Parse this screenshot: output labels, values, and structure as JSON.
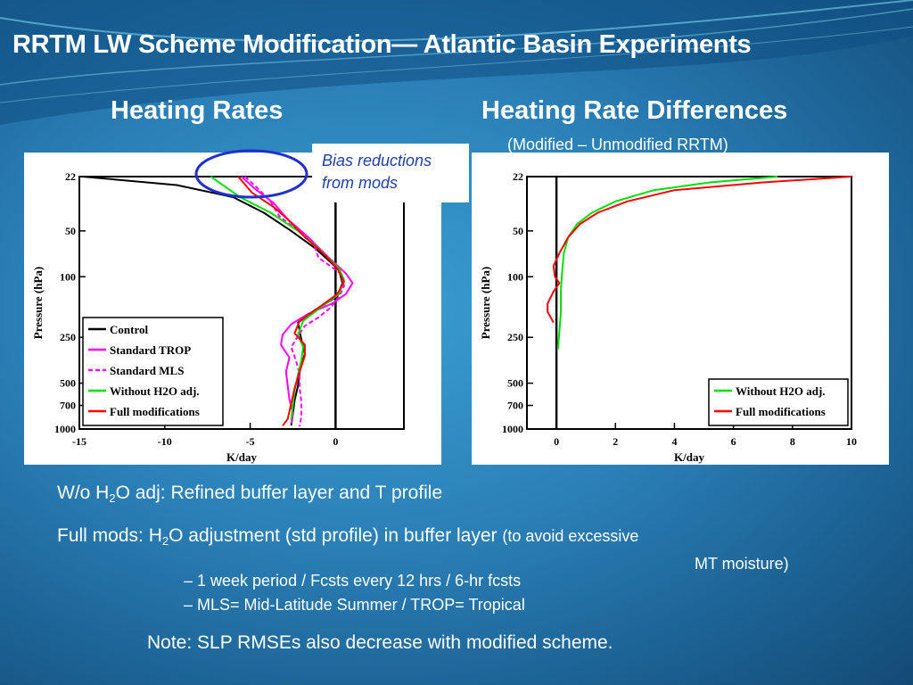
{
  "slide": {
    "title": "RRTM LW Scheme Modification— Atlantic Basin Experiments",
    "left_heading": "Heating Rates",
    "right_heading": "Heating Rate Differences",
    "right_subheading": "(Modified – Unmodified RRTM)",
    "callout_line1": "Bias reductions",
    "callout_line2": "from mods",
    "text1_pre": "W/o H",
    "text1_sub": "2",
    "text1_post": "O adj: Refined buffer layer and T profile",
    "text2_pre": "Full mods: H",
    "text2_sub": "2",
    "text2_post": "O adjustment (std profile) in buffer layer ",
    "text2_small": "(to avoid excessive",
    "text2_cont": "MT moisture)",
    "bullet1": "– 1 week period / Fcsts every 12 hrs / 6-hr fcsts",
    "bullet2": "– MLS= Mid-Latitude Summer / TROP= Tropical",
    "note": "Note: SLP RMSEs also decrease with modified scheme."
  },
  "chart_data": [
    {
      "type": "line",
      "xlabel": "K/day",
      "ylabel": "Pressure (hPa)",
      "xlim": [
        -15,
        4
      ],
      "ylim": [
        1000,
        22
      ],
      "yscale": "log",
      "xticks": [
        -15,
        -10,
        -5,
        0
      ],
      "yticks": [
        22,
        50,
        100,
        250,
        500,
        700,
        1000
      ],
      "ref_x": 0,
      "legend_position": "bottom-left",
      "series": [
        {
          "name": "Control",
          "color": "#000000",
          "points": [
            [
              -14.8,
              22
            ],
            [
              -9.3,
              25
            ],
            [
              -6.0,
              30
            ],
            [
              -4.2,
              38
            ],
            [
              -2.6,
              50
            ],
            [
              -1.2,
              65
            ],
            [
              0.2,
              90
            ],
            [
              0.4,
              110
            ],
            [
              0.1,
              135
            ],
            [
              -1.2,
              165
            ],
            [
              -2.2,
              200
            ],
            [
              -2.0,
              260
            ],
            [
              -1.8,
              320
            ],
            [
              -2.1,
              420
            ],
            [
              -2.2,
              520
            ],
            [
              -2.4,
              650
            ],
            [
              -2.5,
              800
            ],
            [
              -2.6,
              950
            ]
          ]
        },
        {
          "name": "Standard TROP",
          "color": "#ff00ff",
          "points": [
            [
              -5.5,
              22
            ],
            [
              -4.8,
              26
            ],
            [
              -3.6,
              33
            ],
            [
              -2.8,
              42
            ],
            [
              -1.6,
              55
            ],
            [
              -0.4,
              75
            ],
            [
              0.6,
              95
            ],
            [
              1.0,
              110
            ],
            [
              0.6,
              130
            ],
            [
              -0.2,
              150
            ],
            [
              -1.6,
              175
            ],
            [
              -2.6,
              205
            ],
            [
              -3.1,
              240
            ],
            [
              -3.2,
              280
            ],
            [
              -2.7,
              340
            ],
            [
              -2.9,
              420
            ],
            [
              -2.8,
              520
            ],
            [
              -2.7,
              640
            ],
            [
              -2.5,
              780
            ],
            [
              -2.6,
              920
            ]
          ]
        },
        {
          "name": "Standard MLS",
          "color": "#ff00ff",
          "dash": true,
          "points": [
            [
              -5.3,
              22
            ],
            [
              -4.6,
              26
            ],
            [
              -3.8,
              32
            ],
            [
              -3.3,
              40
            ],
            [
              -2.2,
              50
            ],
            [
              -1.3,
              60
            ],
            [
              -1.0,
              75
            ],
            [
              0.3,
              95
            ],
            [
              0.5,
              115
            ],
            [
              0.2,
              135
            ],
            [
              -0.3,
              160
            ],
            [
              -1.0,
              185
            ],
            [
              -1.8,
              210
            ],
            [
              -2.2,
              245
            ],
            [
              -2.6,
              290
            ],
            [
              -2.3,
              360
            ],
            [
              -2.1,
              440
            ],
            [
              -2.1,
              540
            ],
            [
              -2.0,
              670
            ],
            [
              -2.0,
              820
            ],
            [
              -2.1,
              960
            ]
          ]
        },
        {
          "name": "Without H2O adj.",
          "color": "#00e000",
          "points": [
            [
              -7.3,
              22
            ],
            [
              -5.6,
              30
            ],
            [
              -3.8,
              38
            ],
            [
              -2.2,
              50
            ],
            [
              -1.0,
              65
            ],
            [
              0.2,
              88
            ],
            [
              0.5,
              105
            ],
            [
              0.2,
              130
            ],
            [
              -0.9,
              160
            ],
            [
              -1.9,
              195
            ],
            [
              -2.2,
              240
            ],
            [
              -1.9,
              290
            ],
            [
              -2.0,
              350
            ],
            [
              -2.2,
              440
            ],
            [
              -2.4,
              560
            ],
            [
              -2.5,
              700
            ],
            [
              -2.6,
              860
            ]
          ]
        },
        {
          "name": "Full modifications",
          "color": "#ff0000",
          "points": [
            [
              -5.7,
              22
            ],
            [
              -4.9,
              28
            ],
            [
              -3.6,
              35
            ],
            [
              -2.8,
              42
            ],
            [
              -1.8,
              55
            ],
            [
              -0.6,
              72
            ],
            [
              0.1,
              88
            ],
            [
              0.5,
              108
            ],
            [
              0.1,
              130
            ],
            [
              -1.0,
              160
            ],
            [
              -2.1,
              195
            ],
            [
              -2.4,
              235
            ],
            [
              -1.8,
              280
            ],
            [
              -1.8,
              330
            ],
            [
              -2.1,
              420
            ],
            [
              -2.4,
              540
            ],
            [
              -2.6,
              680
            ],
            [
              -2.8,
              860
            ],
            [
              -3.1,
              950
            ]
          ]
        }
      ]
    },
    {
      "type": "line",
      "xlabel": "K/day",
      "ylabel": "Pressure (hPa)",
      "xlim": [
        -1,
        10
      ],
      "ylim": [
        1000,
        22
      ],
      "yscale": "log",
      "xticks": [
        0,
        2,
        4,
        6,
        8,
        10
      ],
      "yticks": [
        22,
        50,
        100,
        250,
        500,
        700,
        1000
      ],
      "ref_x": 0,
      "legend_position": "bottom-right",
      "series": [
        {
          "name": "Without H2O adj.",
          "color": "#00e000",
          "points": [
            [
              7.5,
              22
            ],
            [
              5.2,
              24
            ],
            [
              3.3,
              27
            ],
            [
              2.0,
              32
            ],
            [
              1.2,
              38
            ],
            [
              0.7,
              45
            ],
            [
              0.4,
              55
            ],
            [
              0.25,
              70
            ],
            [
              0.2,
              90
            ],
            [
              0.15,
              120
            ],
            [
              0.15,
              170
            ],
            [
              0.1,
              230
            ],
            [
              0.05,
              300
            ]
          ]
        },
        {
          "name": "Full modifications",
          "color": "#ff0000",
          "points": [
            [
              10,
              22
            ],
            [
              7.0,
              24
            ],
            [
              4.0,
              27
            ],
            [
              2.4,
              32
            ],
            [
              1.4,
              38
            ],
            [
              0.8,
              45
            ],
            [
              0.4,
              55
            ],
            [
              0.1,
              70
            ],
            [
              -0.1,
              85
            ],
            [
              -0.05,
              100
            ],
            [
              0.1,
              110
            ],
            [
              -0.1,
              125
            ],
            [
              -0.3,
              150
            ],
            [
              -0.3,
              170
            ],
            [
              -0.1,
              200
            ]
          ]
        }
      ]
    }
  ]
}
